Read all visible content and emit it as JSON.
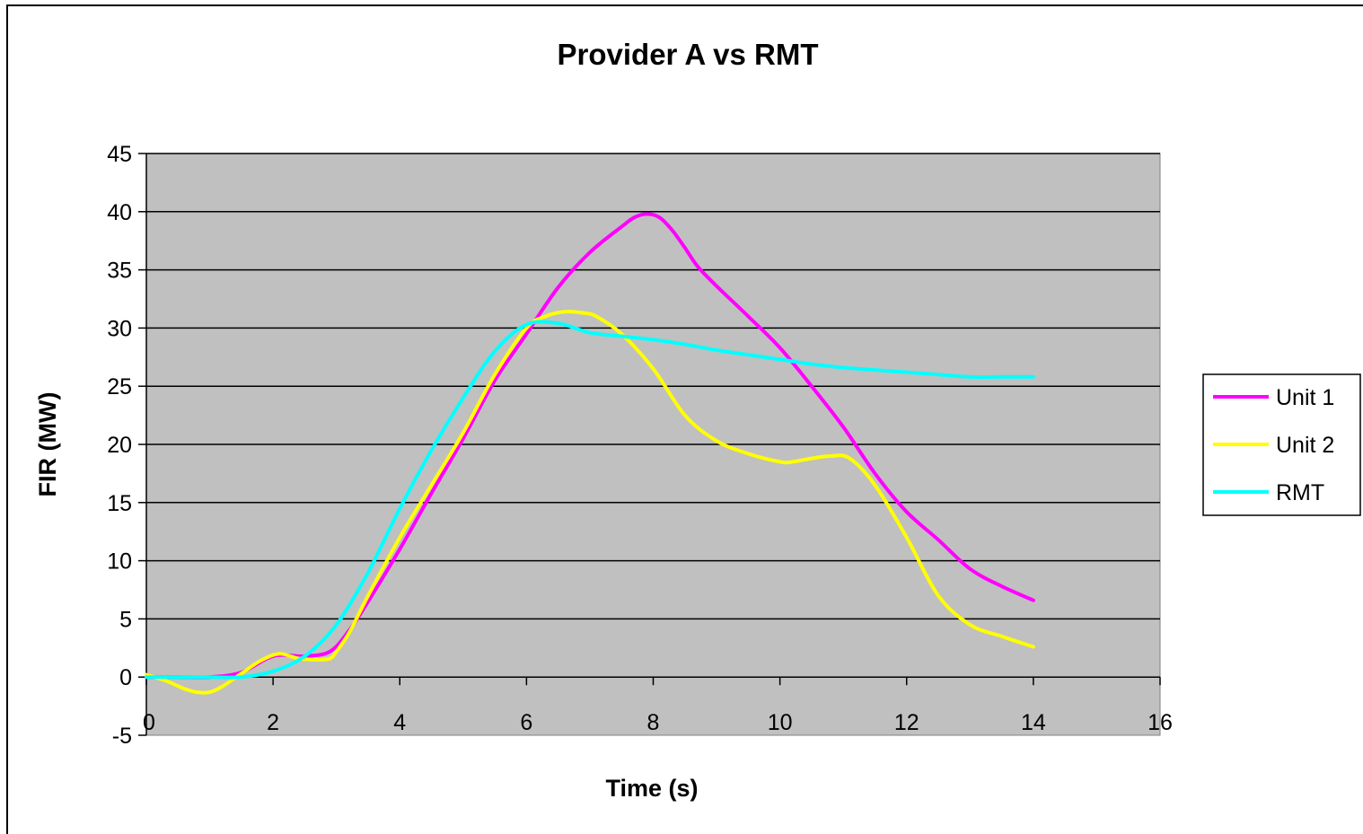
{
  "chart_data": {
    "type": "line",
    "title": "Provider A vs RMT",
    "xlabel": "Time (s)",
    "ylabel": "FIR (MW)",
    "xlim": [
      0,
      16
    ],
    "ylim": [
      -5,
      45
    ],
    "x_ticks": [
      "0",
      "2",
      "4",
      "6",
      "8",
      "10",
      "12",
      "14",
      "16"
    ],
    "y_ticks": [
      "-5",
      "0",
      "5",
      "10",
      "15",
      "20",
      "25",
      "30",
      "35",
      "40",
      "45"
    ],
    "x_tick_values": [
      0,
      2,
      4,
      6,
      8,
      10,
      12,
      14,
      16
    ],
    "y_tick_values": [
      -5,
      0,
      5,
      10,
      15,
      20,
      25,
      30,
      35,
      40,
      45
    ],
    "grid": "horizontal",
    "legend_position": "right",
    "plot_background": "#c0c0c0",
    "series": [
      {
        "name": "Unit 1",
        "color": "#ff00ff",
        "x": [
          0,
          0.5,
          1.0,
          1.5,
          2.0,
          2.5,
          2.9,
          3.2,
          3.5,
          4.0,
          4.5,
          5.0,
          5.5,
          6.0,
          6.5,
          7.0,
          7.5,
          7.7,
          7.9,
          8.1,
          8.3,
          8.5,
          8.7,
          9.0,
          9.5,
          10.0,
          10.5,
          11.0,
          11.5,
          12.0,
          12.5,
          13.0,
          13.5,
          14.0
        ],
        "y": [
          0,
          0,
          0,
          0.4,
          1.8,
          1.8,
          2.2,
          4.0,
          6.5,
          11.0,
          15.8,
          20.5,
          25.5,
          29.5,
          33.5,
          36.5,
          38.7,
          39.5,
          39.8,
          39.5,
          38.4,
          36.9,
          35.3,
          33.6,
          31.0,
          28.3,
          25.0,
          21.5,
          17.5,
          14.2,
          11.8,
          9.3,
          7.8,
          6.6
        ]
      },
      {
        "name": "Unit 2",
        "color": "#ffff00",
        "x": [
          0,
          0.3,
          0.6,
          0.8,
          1.0,
          1.2,
          1.5,
          1.8,
          2.1,
          2.4,
          2.7,
          2.9,
          3.0,
          3.2,
          3.5,
          4.0,
          4.5,
          5.0,
          5.5,
          6.0,
          6.3,
          6.6,
          6.9,
          7.1,
          7.5,
          8.0,
          8.5,
          9.0,
          9.5,
          10.0,
          10.2,
          10.5,
          10.8,
          11.1,
          11.5,
          12.0,
          12.5,
          13.0,
          13.5,
          14.0
        ],
        "y": [
          0.2,
          -0.3,
          -1.0,
          -1.3,
          -1.3,
          -0.8,
          0.3,
          1.4,
          2.0,
          1.6,
          1.5,
          1.6,
          2.2,
          3.8,
          7.0,
          12.0,
          16.5,
          21.0,
          26.0,
          30.0,
          31.0,
          31.4,
          31.3,
          31.0,
          29.5,
          26.5,
          22.5,
          20.3,
          19.2,
          18.5,
          18.5,
          18.8,
          19.0,
          18.8,
          16.5,
          12.0,
          7.0,
          4.5,
          3.5,
          2.6
        ]
      },
      {
        "name": "RMT",
        "color": "#00ffff",
        "x": [
          0,
          0.5,
          1.0,
          1.5,
          2.0,
          2.5,
          3.0,
          3.5,
          4.0,
          4.5,
          5.0,
          5.5,
          6.0,
          6.5,
          7.0,
          7.5,
          8.0,
          8.5,
          9.0,
          9.5,
          10.0,
          10.5,
          11.0,
          11.5,
          12.0,
          12.5,
          13.0,
          13.5,
          14.0
        ],
        "y": [
          0,
          0,
          0,
          0,
          0.5,
          1.8,
          4.5,
          9.0,
          14.5,
          19.5,
          24.0,
          28.0,
          30.3,
          30.4,
          29.6,
          29.3,
          29.0,
          28.6,
          28.1,
          27.7,
          27.3,
          26.9,
          26.6,
          26.4,
          26.2,
          26.0,
          25.8,
          25.8,
          25.8
        ]
      }
    ]
  }
}
